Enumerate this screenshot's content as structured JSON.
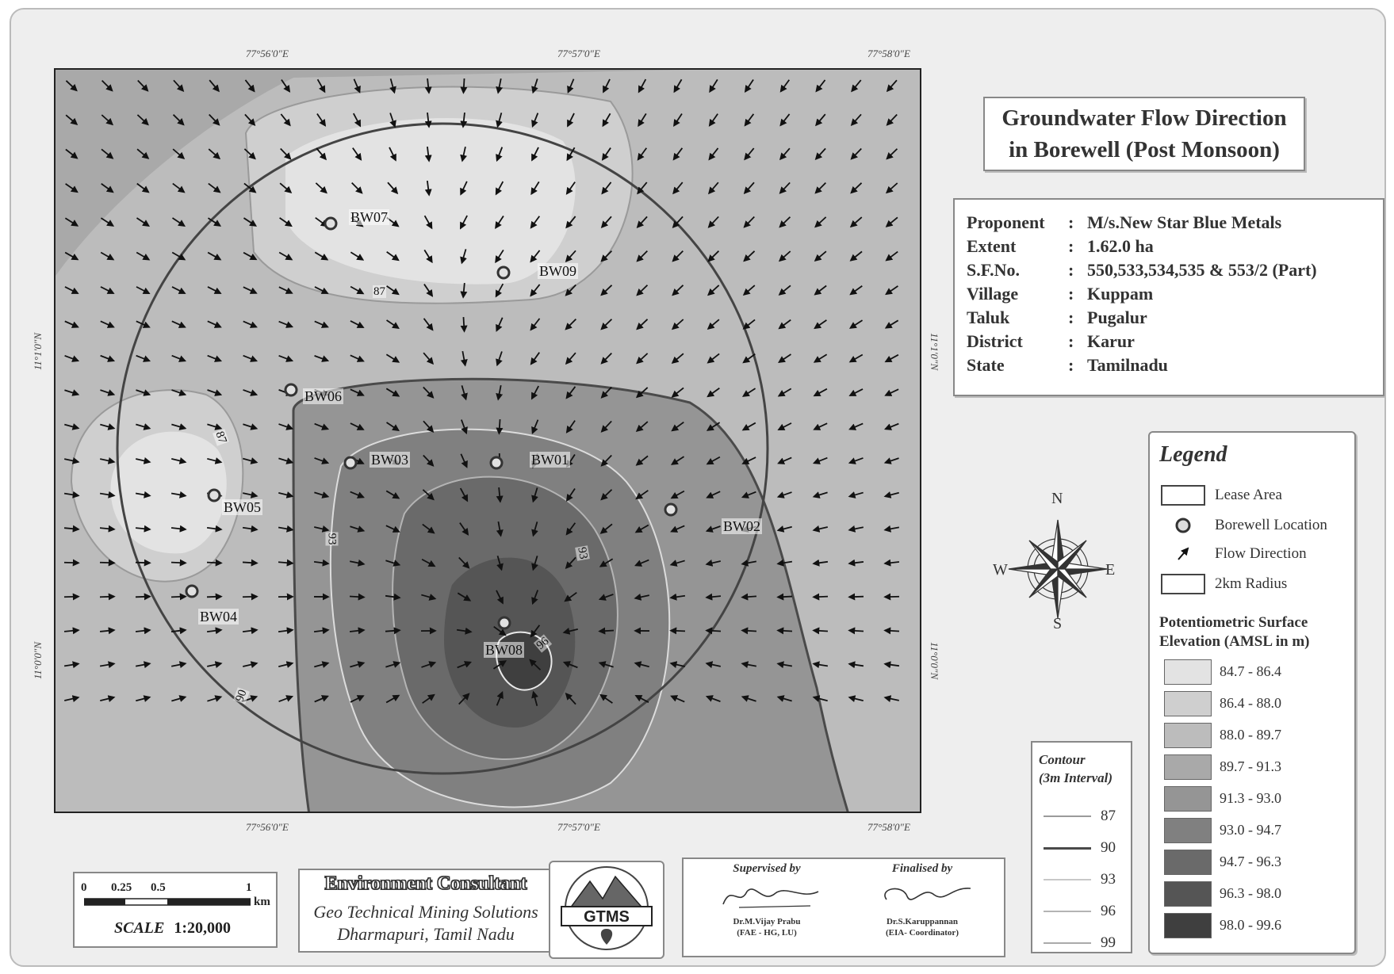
{
  "title": {
    "line1": "Groundwater Flow Direction",
    "line2": "in Borewell (Post Monsoon)"
  },
  "info": [
    {
      "key": "Proponent",
      "value": "M/s.New Star Blue Metals"
    },
    {
      "key": "Extent",
      "value": "1.62.0 ha"
    },
    {
      "key": "S.F.No.",
      "value": "550,533,534,535 & 553/2 (Part)"
    },
    {
      "key": "Village",
      "value": "Kuppam"
    },
    {
      "key": "Taluk",
      "value": "Pugalur"
    },
    {
      "key": "District",
      "value": "Karur"
    },
    {
      "key": "State",
      "value": "Tamilnadu"
    }
  ],
  "info_colon": ":",
  "coords": {
    "top": [
      "77°56'0\"E",
      "77°57'0\"E",
      "77°58'0\"E"
    ],
    "bottom": [
      "77°56'0\"E",
      "77°57'0\"E",
      "77°58'0\"E"
    ],
    "left": [
      "11°1'0\"N",
      "11°0'0\"N"
    ],
    "right": [
      "11°1'0\"N",
      "11°0'0\"N"
    ]
  },
  "borewells": [
    "BW07",
    "BW09",
    "BW06",
    "BW03",
    "BW01",
    "BW05",
    "BW02",
    "BW04",
    "BW08"
  ],
  "contour_labels": [
    "87",
    "87",
    "93",
    "93",
    "96",
    "90"
  ],
  "compass": {
    "n": "N",
    "s": "S",
    "e": "E",
    "w": "W"
  },
  "legend": {
    "title": "Legend",
    "items": [
      {
        "label": "Lease Area",
        "icon": "lease-rect"
      },
      {
        "label": "Borewell Location",
        "icon": "borewell-icon"
      },
      {
        "label": "Flow Direction",
        "icon": "flow-arrow-icon"
      },
      {
        "label": "2km Radius",
        "icon": "radius-rect"
      }
    ],
    "pse_title_1": "Potentiometric Surface",
    "pse_title_2": "Elevation (AMSL in m)",
    "classes": [
      {
        "label": "84.7 - 86.4",
        "color": "#e3e3e3"
      },
      {
        "label": "86.4 - 88.0",
        "color": "#cfcfcf"
      },
      {
        "label": "88.0 - 89.7",
        "color": "#bcbcbc"
      },
      {
        "label": "89.7 - 91.3",
        "color": "#a9a9a9"
      },
      {
        "label": "91.3 - 93.0",
        "color": "#959595"
      },
      {
        "label": "93.0 - 94.7",
        "color": "#808080"
      },
      {
        "label": "94.7 - 96.3",
        "color": "#6a6a6a"
      },
      {
        "label": "96.3 - 98.0",
        "color": "#555555"
      },
      {
        "label": "98.0 - 99.6",
        "color": "#3f3f3f"
      }
    ]
  },
  "contour_legend": {
    "title_1": "Contour",
    "title_2": "(3m Interval)",
    "values": [
      "87",
      "90",
      "93",
      "96",
      "99"
    ]
  },
  "scale": {
    "ticks": [
      "0",
      "0.25",
      "0.5",
      "1"
    ],
    "unit": "km",
    "label": "SCALE",
    "ratio": "1:20,000"
  },
  "consultant": {
    "heading": "Environment Consultant",
    "line1": "Geo Technical Mining Solutions",
    "line2": "Dharmapuri, Tamil Nadu"
  },
  "logo": {
    "text": "GTMS"
  },
  "signatures": {
    "supervised_label": "Supervised by",
    "supervised_name": "Dr.M.Vijay Prabu",
    "supervised_role": "(FAE - HG, LU)",
    "finalised_label": "Finalised by",
    "finalised_name": "Dr.S.Karuppannan",
    "finalised_role": "(EIA- Coordinator)"
  }
}
